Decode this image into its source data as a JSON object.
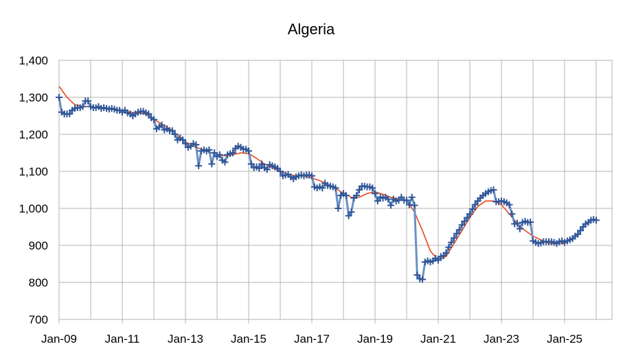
{
  "chart_data": {
    "type": "line",
    "title": "Algeria",
    "xlim": [
      0,
      210
    ],
    "ylim": [
      700,
      1400
    ],
    "xticks": [
      {
        "value": 0,
        "label": "Jan-09"
      },
      {
        "value": 24,
        "label": "Jan-11"
      },
      {
        "value": 48,
        "label": "Jan-13"
      },
      {
        "value": 72,
        "label": "Jan-15"
      },
      {
        "value": 96,
        "label": "Jan-17"
      },
      {
        "value": 120,
        "label": "Jan-19"
      },
      {
        "value": 144,
        "label": "Jan-21"
      },
      {
        "value": 168,
        "label": "Jan-23"
      },
      {
        "value": 192,
        "label": "Jan-25"
      }
    ],
    "yticks": [
      700,
      800,
      900,
      {
        "value": 1000,
        "label": "1,000"
      },
      {
        "value": 1100,
        "label": "1,100"
      },
      {
        "value": 1200,
        "label": "1,200"
      },
      {
        "value": 1300,
        "label": "1,300"
      },
      {
        "value": 1400,
        "label": "1,400"
      }
    ],
    "grid": true,
    "series": [
      {
        "color": "#6a8fc5",
        "marker_color": "#2f5597",
        "x": [
          0,
          1,
          2,
          3,
          4,
          5,
          6,
          7,
          8,
          9,
          10,
          11,
          12,
          13,
          14,
          15,
          16,
          17,
          18,
          19,
          20,
          21,
          22,
          23,
          24,
          25,
          26,
          27,
          28,
          29,
          30,
          31,
          32,
          33,
          34,
          35,
          36,
          37,
          38,
          39,
          40,
          41,
          42,
          43,
          44,
          45,
          46,
          47,
          48,
          49,
          50,
          51,
          52,
          53,
          54,
          55,
          56,
          57,
          58,
          59,
          60,
          61,
          62,
          63,
          64,
          65,
          66,
          67,
          68,
          69,
          70,
          71,
          72,
          73,
          74,
          75,
          76,
          77,
          78,
          79,
          80,
          81,
          82,
          83,
          84,
          85,
          86,
          87,
          88,
          89,
          90,
          91,
          92,
          93,
          94,
          95,
          96,
          97,
          98,
          99,
          100,
          101,
          102,
          103,
          104,
          105,
          106,
          107,
          108,
          109,
          110,
          111,
          112,
          113,
          114,
          115,
          116,
          117,
          118,
          119,
          120,
          121,
          122,
          123,
          124,
          125,
          126,
          127,
          128,
          129,
          130,
          131,
          132,
          133,
          134,
          135,
          136,
          137,
          138,
          139,
          140,
          141,
          142,
          143,
          144,
          145,
          146,
          147,
          148,
          149,
          150,
          151,
          152,
          153,
          154,
          155,
          156,
          157,
          158,
          159,
          160,
          161,
          162,
          163,
          164,
          165,
          166,
          167,
          168,
          169,
          170,
          171,
          172,
          173,
          174,
          175,
          176,
          177,
          178,
          179,
          180,
          181,
          182,
          183,
          184,
          185,
          186,
          187,
          188,
          189,
          190,
          191,
          192,
          193,
          194,
          195,
          196,
          197,
          198,
          199,
          200,
          201,
          202,
          203,
          204
        ],
        "values": [
          1300,
          1260,
          1255,
          1255,
          1255,
          1265,
          1270,
          1272,
          1272,
          1275,
          1290,
          1290,
          1275,
          1272,
          1272,
          1275,
          1270,
          1272,
          1270,
          1268,
          1270,
          1268,
          1265,
          1265,
          1260,
          1265,
          1258,
          1255,
          1250,
          1255,
          1260,
          1262,
          1262,
          1258,
          1255,
          1245,
          1240,
          1215,
          1220,
          1225,
          1212,
          1215,
          1210,
          1210,
          1200,
          1185,
          1190,
          1185,
          1175,
          1165,
          1168,
          1175,
          1172,
          1115,
          1155,
          1158,
          1155,
          1158,
          1120,
          1150,
          1140,
          1145,
          1130,
          1125,
          1145,
          1148,
          1150,
          1162,
          1168,
          1165,
          1160,
          1160,
          1155,
          1120,
          1110,
          1112,
          1108,
          1120,
          1110,
          1105,
          1118,
          1115,
          1112,
          1108,
          1100,
          1088,
          1090,
          1092,
          1085,
          1080,
          1085,
          1088,
          1090,
          1088,
          1090,
          1090,
          1088,
          1058,
          1055,
          1058,
          1055,
          1068,
          1062,
          1060,
          1058,
          1055,
          1000,
          1035,
          1040,
          1035,
          980,
          990,
          1028,
          1035,
          1050,
          1060,
          1060,
          1058,
          1058,
          1055,
          1040,
          1020,
          1030,
          1028,
          1030,
          1025,
          1008,
          1025,
          1020,
          1022,
          1030,
          1022,
          1022,
          1010,
          1030,
          1008,
          820,
          810,
          808,
          855,
          858,
          855,
          858,
          865,
          860,
          870,
          872,
          880,
          895,
          908,
          920,
          932,
          942,
          955,
          965,
          975,
          985,
          998,
          1010,
          1020,
          1028,
          1035,
          1040,
          1045,
          1048,
          1050,
          1018,
          1018,
          1020,
          1018,
          1015,
          1010,
          985,
          958,
          960,
          945,
          962,
          965,
          962,
          963,
          912,
          908,
          905,
          907,
          910,
          910,
          910,
          910,
          908,
          905,
          910,
          912,
          908,
          912,
          915,
          918,
          925,
          930,
          940,
          950,
          958,
          962,
          968,
          970,
          968
        ]
      },
      {
        "color": "#e8471c",
        "x": [
          0,
          3,
          6,
          9,
          12,
          15,
          18,
          21,
          24,
          27,
          30,
          33,
          36,
          39,
          42,
          45,
          48,
          51,
          54,
          57,
          60,
          63,
          66,
          69,
          72,
          75,
          78,
          81,
          84,
          87,
          90,
          93,
          96,
          99,
          102,
          105,
          108,
          111,
          114,
          117,
          120,
          123,
          126,
          129,
          132,
          135,
          138,
          141,
          144,
          147,
          150,
          153,
          156,
          159,
          162,
          165,
          168,
          171,
          174,
          177,
          180,
          183,
          186,
          189,
          192
        ],
        "values": [
          1330,
          1300,
          1280,
          1275,
          1275,
          1272,
          1270,
          1268,
          1265,
          1260,
          1258,
          1255,
          1240,
          1228,
          1215,
          1198,
          1180,
          1168,
          1160,
          1152,
          1145,
          1142,
          1145,
          1150,
          1148,
          1135,
          1120,
          1110,
          1100,
          1092,
          1088,
          1088,
          1082,
          1075,
          1065,
          1055,
          1040,
          1030,
          1030,
          1040,
          1045,
          1038,
          1030,
          1025,
          1022,
          990,
          940,
          885,
          860,
          870,
          905,
          940,
          975,
          1005,
          1020,
          1020,
          1010,
          985,
          960,
          940,
          925,
          915,
          905,
          905,
          905
        ]
      }
    ]
  }
}
